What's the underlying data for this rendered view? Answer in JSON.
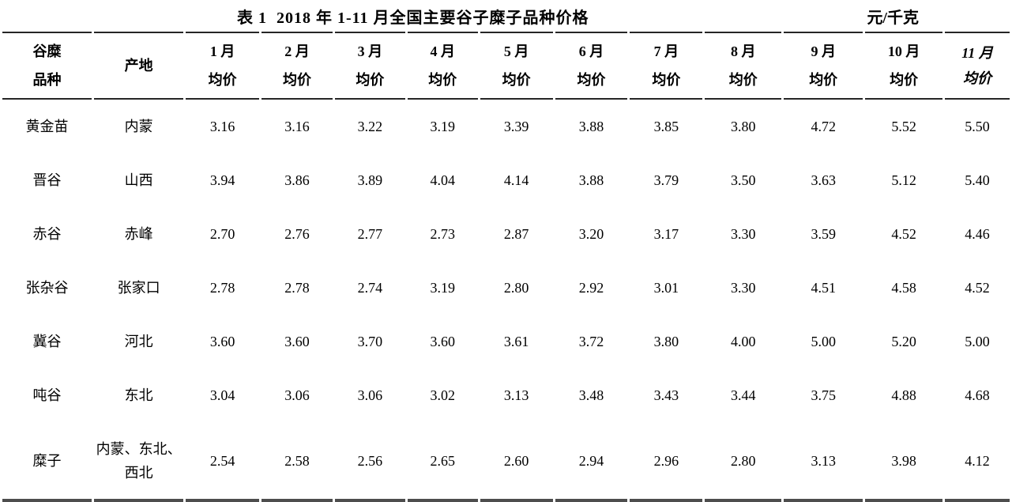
{
  "title": "表 1  2018 年 1-11 月全国主要谷子糜子品种价格",
  "unit": "元/千克",
  "table": {
    "variety_header_line1": "谷糜",
    "variety_header_line2": "品种",
    "origin_header": "产地",
    "month_headers": [
      {
        "label": "1 月",
        "sub": "均价",
        "italic": false
      },
      {
        "label": "2 月",
        "sub": "均价",
        "italic": false
      },
      {
        "label": "3 月",
        "sub": "均价",
        "italic": false
      },
      {
        "label": "4 月",
        "sub": "均价",
        "italic": false
      },
      {
        "label": "5 月",
        "sub": "均价",
        "italic": false
      },
      {
        "label": "6 月",
        "sub": "均价",
        "italic": false
      },
      {
        "label": "7 月",
        "sub": "均价",
        "italic": false
      },
      {
        "label": "8 月",
        "sub": "均价",
        "italic": false
      },
      {
        "label": "9 月",
        "sub": "均价",
        "italic": false
      },
      {
        "label": "10 月",
        "sub": "均价",
        "italic": false
      },
      {
        "label": "11 月",
        "sub": "均价",
        "italic": true
      }
    ],
    "rows": [
      {
        "variety": "黄金苗",
        "origin": "内蒙",
        "values": [
          "3.16",
          "3.16",
          "3.22",
          "3.19",
          "3.39",
          "3.88",
          "3.85",
          "3.80",
          "4.72",
          "5.52",
          "5.50"
        ]
      },
      {
        "variety": "晋谷",
        "origin": "山西",
        "values": [
          "3.94",
          "3.86",
          "3.89",
          "4.04",
          "4.14",
          "3.88",
          "3.79",
          "3.50",
          "3.63",
          "5.12",
          "5.40"
        ]
      },
      {
        "variety": "赤谷",
        "origin": "赤峰",
        "values": [
          "2.70",
          "2.76",
          "2.77",
          "2.73",
          "2.87",
          "3.20",
          "3.17",
          "3.30",
          "3.59",
          "4.52",
          "4.46"
        ]
      },
      {
        "variety": "张杂谷",
        "origin": "张家口",
        "values": [
          "2.78",
          "2.78",
          "2.74",
          "3.19",
          "2.80",
          "2.92",
          "3.01",
          "3.30",
          "4.51",
          "4.58",
          "4.52"
        ]
      },
      {
        "variety": "冀谷",
        "origin": "河北",
        "values": [
          "3.60",
          "3.60",
          "3.70",
          "3.60",
          "3.61",
          "3.72",
          "3.80",
          "4.00",
          "5.00",
          "5.20",
          "5.00"
        ]
      },
      {
        "variety": "吨谷",
        "origin": "东北",
        "values": [
          "3.04",
          "3.06",
          "3.06",
          "3.02",
          "3.13",
          "3.48",
          "3.43",
          "3.44",
          "3.75",
          "4.88",
          "4.68"
        ]
      },
      {
        "variety": "糜子",
        "origin": "内蒙、东北、西北",
        "values": [
          "2.54",
          "2.58",
          "2.56",
          "2.65",
          "2.60",
          "2.94",
          "2.96",
          "2.80",
          "3.13",
          "3.98",
          "4.12"
        ]
      }
    ]
  }
}
